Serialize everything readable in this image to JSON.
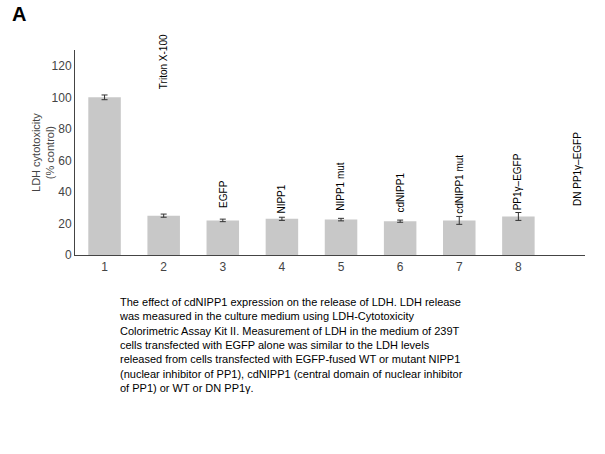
{
  "chart_data": {
    "type": "bar",
    "title": "A",
    "categories": [
      "1",
      "2",
      "3",
      "4",
      "5",
      "6",
      "7",
      "8"
    ],
    "values": [
      100,
      25,
      22,
      23,
      22.5,
      21.5,
      22,
      24.5
    ],
    "errors": [
      1.5,
      1.0,
      0.8,
      1.0,
      0.8,
      0.7,
      2.5,
      2.5
    ],
    "annotations": [
      "Triton X-100",
      "EGFP",
      "NIPP1",
      "NIPP1 mut",
      "cdNIPP1",
      "cdNIPP1 mut",
      "PP1γ–EGFP",
      "DN PP1γ–EGFP"
    ],
    "color": "#c8c8c8",
    "ylabel": "LDH cytotoxicity\n(% control)",
    "ylim": [
      0,
      130
    ],
    "yticks": [
      0,
      20,
      40,
      60,
      80,
      100,
      120
    ],
    "grid": false,
    "caption": "The effect of cdNIPP1 expression on the release of LDH. LDH release\nwas measured in the culture medium using LDH-Cytotoxicity\nColorimetric Assay Kit II. Measurement of LDH in the medium of 239T\ncells transfected with EGFP alone was similar to the LDH levels\nreleased from cells transfected with EGFP-fused WT or mutant NIPP1\n(nuclear inhibitor of PP1), cdNIPP1 (central domain of nuclear inhibitor\nof PP1) or WT or DN PP1γ."
  }
}
